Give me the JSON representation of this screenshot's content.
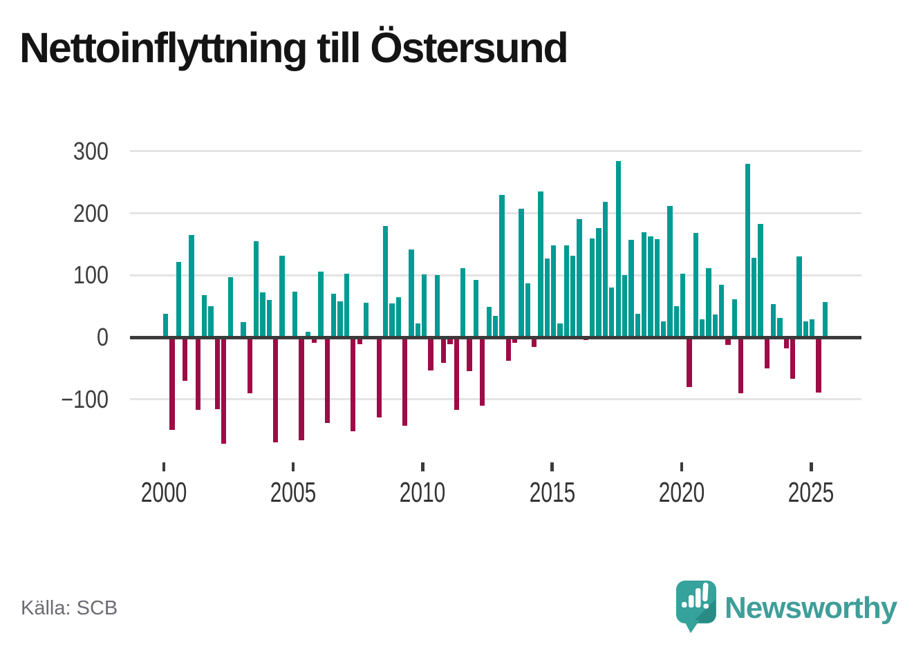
{
  "title": "Nettoinflyttning till Östersund",
  "source": "Källa: SCB",
  "logo": {
    "text": "Newsworthy"
  },
  "colors": {
    "positive": "#009B93",
    "negative": "#9E0B46",
    "zero_line": "#3B3B3B",
    "grid": "#E4E4E4",
    "title_text": "#141414",
    "axis_text": "#3D3D3D",
    "source_text": "#6B6B74",
    "logo_teal": "#3F9E99",
    "logo_bubble": "#35A29B",
    "logo_bubble_shade": "#2A8A84"
  },
  "chart_data": {
    "type": "bar",
    "title": "Nettoinflyttning till Östersund",
    "frequency": "quarterly",
    "period_start": "2000-Q1",
    "period_end": "2025-Q3",
    "values": [
      38,
      -149,
      122,
      -70,
      165,
      -117,
      68,
      50,
      -116,
      -172,
      97,
      0,
      25,
      -90,
      155,
      73,
      60,
      -169,
      132,
      0,
      74,
      -166,
      9,
      -9,
      106,
      -138,
      70,
      58,
      103,
      -152,
      -11,
      56,
      0,
      -129,
      180,
      55,
      65,
      -143,
      142,
      22,
      101,
      -53,
      100,
      -41,
      -11,
      -117,
      111,
      -55,
      93,
      -110,
      49,
      35,
      230,
      -38,
      -9,
      207,
      87,
      -16,
      235,
      127,
      148,
      22,
      148,
      132,
      191,
      -4,
      159,
      176,
      218,
      80,
      284,
      100,
      157,
      38,
      169,
      163,
      158,
      26,
      212,
      50,
      103,
      -80,
      168,
      29,
      112,
      37,
      85,
      -12,
      61,
      -90,
      280,
      128,
      183,
      -50,
      54,
      31,
      -18,
      -67,
      130,
      26,
      29,
      -89,
      57
    ],
    "y_ticks": [
      300,
      200,
      100,
      0,
      -100
    ],
    "y_tick_labels": [
      "300",
      "200",
      "100",
      "0",
      "−100"
    ],
    "x_ticks": [
      "2000",
      "2005",
      "2010",
      "2015",
      "2020",
      "2025"
    ],
    "x_tick_years": [
      2000,
      2005,
      2010,
      2015,
      2020,
      2025
    ],
    "ylim": [
      -185,
      320
    ],
    "grid": true,
    "legend": "none",
    "positive_color": "#009B93",
    "negative_color": "#9E0B46"
  }
}
